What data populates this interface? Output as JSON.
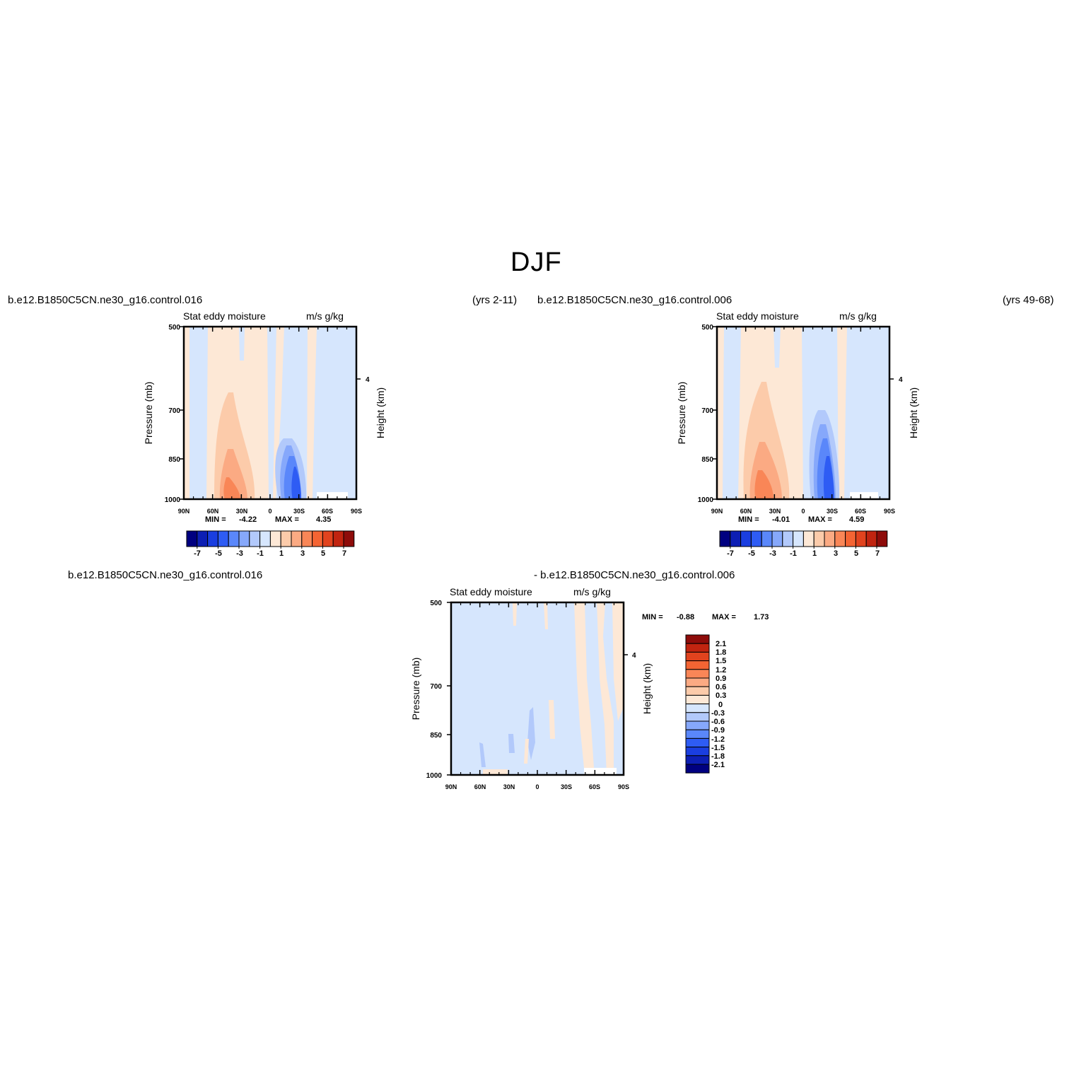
{
  "page": {
    "title": "DJF"
  },
  "header": {
    "left_case": "b.e12.B1850C5CN.ne30_g16.control.016",
    "left_years": "(yrs 2-11)",
    "right_case": "b.e12.B1850C5CN.ne30_g16.control.006",
    "right_years": "(yrs 49-68)",
    "diff_case_a": "b.e12.B1850C5CN.ne30_g16.control.016",
    "diff_case_b": "- b.e12.B1850C5CN.ne30_g16.control.006"
  },
  "colors": {
    "neg": [
      "#000080",
      "#0d1fb4",
      "#1a3ee0",
      "#2e5cf4",
      "#5a87fa",
      "#86a8fb",
      "#b2c9fb",
      "#d6e6fd"
    ],
    "pos": [
      "#fde8d6",
      "#fccbaa",
      "#fbaa83",
      "#f98657",
      "#f46433",
      "#e1431e",
      "#c12410",
      "#8e0c0a"
    ]
  },
  "chart_data": [
    {
      "type": "contour",
      "variable": "Stat eddy moisture",
      "units": "m/s g/kg",
      "ylabel": "Pressure (mb)",
      "ylabel_right": "Height (km)",
      "y_ticks": [
        "500",
        "700",
        "850",
        "1000"
      ],
      "y_right_ticks": [
        "4"
      ],
      "x_ticks": [
        "90N",
        "60N",
        "30N",
        "0",
        "30S",
        "60S",
        "90S"
      ],
      "ylim": [
        1000,
        500
      ],
      "xlim": [
        -90,
        90
      ],
      "min_label": "MIN =",
      "min": "-4.22",
      "max_label": "MAX =",
      "max": "4.35",
      "colorbar_labels": [
        "-7",
        "-5",
        "-3",
        "-1",
        "1",
        "3",
        "5",
        "7"
      ]
    },
    {
      "type": "contour",
      "variable": "Stat eddy moisture",
      "units": "m/s g/kg",
      "ylabel": "Pressure (mb)",
      "ylabel_right": "Height (km)",
      "y_ticks": [
        "500",
        "700",
        "850",
        "1000"
      ],
      "y_right_ticks": [
        "4"
      ],
      "x_ticks": [
        "90N",
        "60N",
        "30N",
        "0",
        "30S",
        "60S",
        "90S"
      ],
      "ylim": [
        1000,
        500
      ],
      "xlim": [
        -90,
        90
      ],
      "min_label": "MIN =",
      "min": "-4.01",
      "max_label": "MAX =",
      "max": "4.59",
      "colorbar_labels": [
        "-7",
        "-5",
        "-3",
        "-1",
        "1",
        "3",
        "5",
        "7"
      ]
    },
    {
      "type": "contour",
      "variable": "Stat eddy moisture",
      "units": "m/s g/kg",
      "ylabel": "Pressure (mb)",
      "ylabel_right": "Height (km)",
      "y_ticks": [
        "500",
        "700",
        "850",
        "1000"
      ],
      "y_right_ticks": [
        "4"
      ],
      "x_ticks": [
        "90N",
        "60N",
        "30N",
        "0",
        "30S",
        "60S",
        "90S"
      ],
      "ylim": [
        1000,
        500
      ],
      "xlim": [
        -90,
        90
      ],
      "min_label": "MIN =",
      "min": "-0.88",
      "max_label": "MAX =",
      "max": "1.73",
      "colorbar_labels": [
        "2.1",
        "1.8",
        "1.5",
        "1.2",
        "0.9",
        "0.6",
        "0.3",
        "0",
        "-0.3",
        "-0.6",
        "-0.9",
        "-1.2",
        "-1.5",
        "-1.8",
        "-2.1"
      ]
    }
  ]
}
